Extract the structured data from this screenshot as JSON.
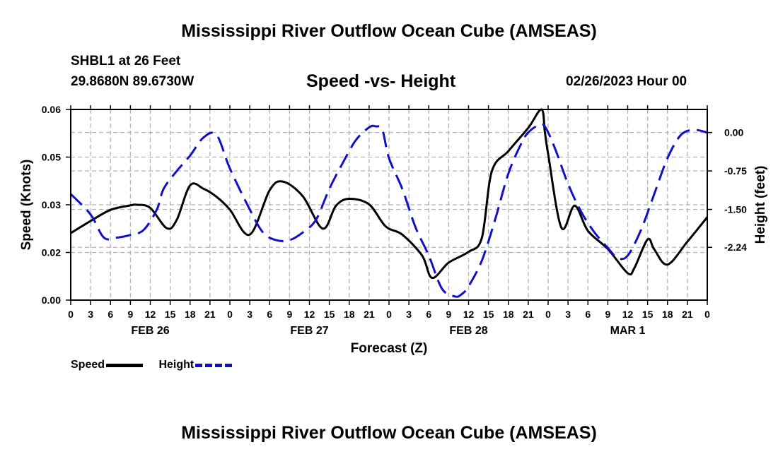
{
  "header": {
    "title": "Mississippi River Outflow Ocean Cube (AMSEAS)",
    "station": "SHBL1 at 26 Feet",
    "coordinates": "29.8680N  89.6730W",
    "subtitle": "Speed -vs- Height",
    "datetime": "02/26/2023 Hour 00"
  },
  "footer": {
    "title": "Mississippi River Outflow Ocean Cube (AMSEAS)"
  },
  "colors": {
    "speed": "#000000",
    "height": "#1010c8",
    "grid": "#b4b4b4"
  },
  "chart_data": {
    "type": "line",
    "title": "Speed -vs- Height",
    "xlabel": "Forecast (Z)",
    "ylabel_left": "Speed (Knots)",
    "ylabel_right": "Height (feet)",
    "x_range_hours": [
      0,
      96
    ],
    "x_ticks": [
      {
        "hour": 0,
        "label": "0"
      },
      {
        "hour": 3,
        "label": "3"
      },
      {
        "hour": 6,
        "label": "6"
      },
      {
        "hour": 9,
        "label": "9"
      },
      {
        "hour": 12,
        "label": "12"
      },
      {
        "hour": 15,
        "label": "15"
      },
      {
        "hour": 18,
        "label": "18"
      },
      {
        "hour": 21,
        "label": "21"
      },
      {
        "hour": 24,
        "label": "0"
      },
      {
        "hour": 27,
        "label": "3"
      },
      {
        "hour": 30,
        "label": "6"
      },
      {
        "hour": 33,
        "label": "9"
      },
      {
        "hour": 36,
        "label": "12"
      },
      {
        "hour": 39,
        "label": "15"
      },
      {
        "hour": 42,
        "label": "18"
      },
      {
        "hour": 45,
        "label": "21"
      },
      {
        "hour": 48,
        "label": "0"
      },
      {
        "hour": 51,
        "label": "3"
      },
      {
        "hour": 54,
        "label": "6"
      },
      {
        "hour": 57,
        "label": "9"
      },
      {
        "hour": 60,
        "label": "12"
      },
      {
        "hour": 63,
        "label": "15"
      },
      {
        "hour": 66,
        "label": "18"
      },
      {
        "hour": 69,
        "label": "21"
      },
      {
        "hour": 72,
        "label": "0"
      },
      {
        "hour": 75,
        "label": "3"
      },
      {
        "hour": 78,
        "label": "6"
      },
      {
        "hour": 81,
        "label": "9"
      },
      {
        "hour": 84,
        "label": "12"
      },
      {
        "hour": 87,
        "label": "15"
      },
      {
        "hour": 90,
        "label": "18"
      },
      {
        "hour": 93,
        "label": "21"
      },
      {
        "hour": 96,
        "label": "0"
      }
    ],
    "date_labels": [
      {
        "hour": 12,
        "label": "FEB 26"
      },
      {
        "hour": 36,
        "label": "FEB 27"
      },
      {
        "hour": 60,
        "label": "FEB 28"
      },
      {
        "hour": 84,
        "label": "MAR 1"
      }
    ],
    "y_left": {
      "range": [
        0,
        0.06
      ],
      "ticks": [
        0,
        0.015,
        0.03,
        0.045,
        0.06
      ],
      "tick_labels": [
        "0.00",
        "0.02",
        "0.03",
        "0.05",
        "0.06"
      ]
    },
    "y_right": {
      "range": [
        -3.27,
        0.45
      ],
      "ticks": [
        0.0,
        -0.75,
        -1.5,
        -2.24
      ],
      "tick_labels": [
        "0.00",
        "-0.75",
        "-1.50",
        "-2.24"
      ]
    },
    "series": [
      {
        "name": "Speed",
        "axis": "left",
        "style": "solid",
        "x": [
          0,
          3,
          6,
          9,
          10,
          12,
          14.5,
          16,
          18,
          20,
          22,
          24,
          27,
          30,
          32,
          35,
          38,
          40,
          42,
          45,
          47.5,
          50,
          53,
          54.5,
          57,
          60,
          62,
          63.5,
          66,
          69,
          71,
          71.5,
          72,
          74,
          76,
          78,
          81,
          84,
          85,
          87,
          88,
          90,
          93,
          96
        ],
        "values": [
          0.0211,
          0.0249,
          0.0284,
          0.0298,
          0.03,
          0.029,
          0.0226,
          0.0253,
          0.0361,
          0.0351,
          0.0325,
          0.0285,
          0.0206,
          0.0346,
          0.0373,
          0.0327,
          0.0225,
          0.0297,
          0.0319,
          0.0301,
          0.0232,
          0.0206,
          0.014,
          0.007,
          0.0118,
          0.0152,
          0.0196,
          0.0405,
          0.0469,
          0.0542,
          0.06,
          0.053,
          0.046,
          0.0228,
          0.0297,
          0.0218,
          0.0161,
          0.0085,
          0.0101,
          0.0191,
          0.016,
          0.0112,
          0.0184,
          0.0261
        ]
      },
      {
        "name": "Height",
        "axis": "right",
        "style": "dashed",
        "x": [
          0,
          3,
          5,
          7,
          9,
          11,
          13,
          14,
          16,
          18,
          20,
          22,
          24,
          27,
          29,
          31,
          33,
          35,
          37,
          39,
          41,
          43,
          45,
          46,
          47,
          48,
          50,
          52,
          54,
          56,
          58,
          59,
          60,
          62,
          64,
          66,
          68,
          69,
          70.5,
          71.5,
          73,
          75,
          77,
          79,
          81,
          82.5,
          84,
          86,
          88,
          90,
          92,
          94,
          96
        ],
        "values": [
          -1.2,
          -1.6,
          -2.05,
          -2.05,
          -2.0,
          -1.9,
          -1.5,
          -1.1,
          -0.75,
          -0.45,
          -0.1,
          -0.05,
          -0.7,
          -1.5,
          -1.95,
          -2.1,
          -2.1,
          -1.95,
          -1.7,
          -1.1,
          -0.6,
          -0.15,
          0.1,
          0.12,
          0.05,
          -0.5,
          -1.1,
          -1.85,
          -2.4,
          -3.05,
          -3.2,
          -3.15,
          -3.0,
          -2.5,
          -1.7,
          -0.8,
          -0.2,
          0.0,
          0.14,
          0.12,
          -0.3,
          -1.0,
          -1.55,
          -1.95,
          -2.25,
          -2.45,
          -2.4,
          -1.9,
          -1.2,
          -0.5,
          -0.05,
          0.05,
          0.0
        ]
      }
    ],
    "legend": [
      {
        "name": "Speed",
        "style": "solid"
      },
      {
        "name": "Height",
        "style": "dashed"
      }
    ]
  }
}
